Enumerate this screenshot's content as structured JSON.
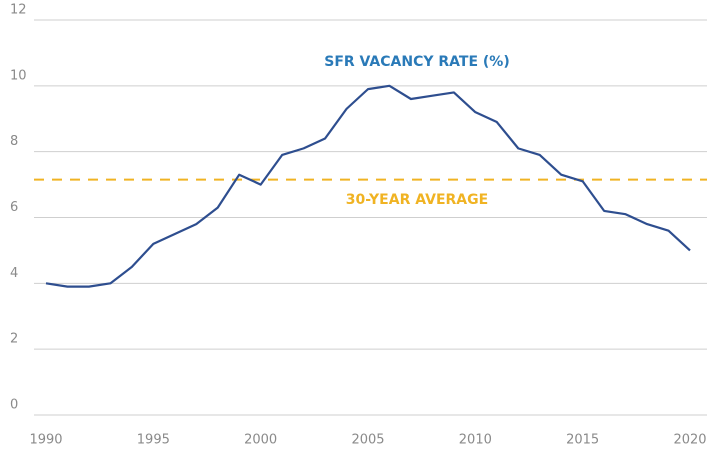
{
  "chart_data": {
    "type": "line",
    "title": "SFR VACANCY RATE (%)",
    "annotation": "30-YEAR AVERAGE",
    "average": 7.15,
    "average_color": "#f0b323",
    "title_color": "#2a7ab8",
    "x": [
      1990,
      1991,
      1992,
      1993,
      1994,
      1995,
      1996,
      1997,
      1998,
      1999,
      2000,
      2001,
      2002,
      2003,
      2004,
      2005,
      2006,
      2007,
      2008,
      2009,
      2010,
      2011,
      2012,
      2013,
      2014,
      2015,
      2016,
      2017,
      2018,
      2019,
      2020
    ],
    "series": [
      {
        "color": "#2e4e8f",
        "values": [
          4.0,
          3.9,
          3.9,
          4.0,
          4.5,
          5.2,
          5.5,
          5.8,
          6.3,
          7.3,
          7.0,
          7.9,
          8.1,
          8.4,
          9.3,
          9.9,
          10.0,
          9.6,
          9.7,
          9.8,
          9.2,
          8.9,
          8.1,
          7.9,
          7.3,
          7.1,
          6.2,
          6.1,
          5.8,
          5.6,
          5.0
        ]
      }
    ],
    "xlim": [
      1990,
      2020
    ],
    "xticks": [
      1990,
      1995,
      2000,
      2005,
      2010,
      2015,
      2020
    ],
    "ylim": [
      0,
      12
    ],
    "yticks": [
      0,
      2,
      4,
      6,
      8,
      10,
      12
    ],
    "grid": true
  }
}
